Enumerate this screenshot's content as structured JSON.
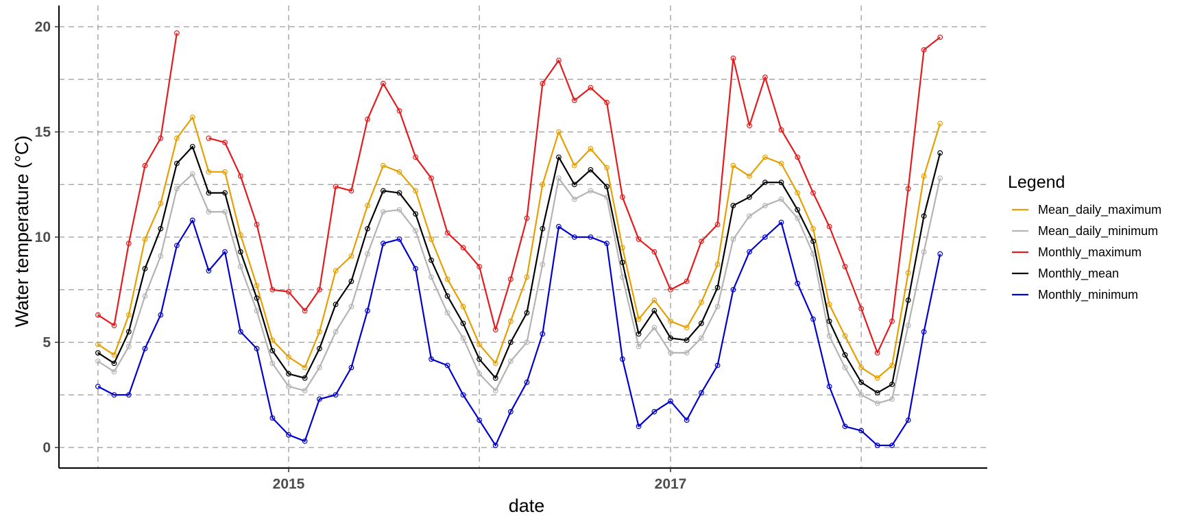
{
  "chart_data": {
    "type": "line",
    "title": "",
    "xlabel": "date",
    "ylabel": "Water temperature (°C)",
    "ylim": [
      -1,
      21
    ],
    "yticks": [
      0,
      5,
      10,
      15,
      20
    ],
    "xticks": [
      {
        "date": "2015-01-01",
        "label": "2015"
      },
      {
        "date": "2017-01-01",
        "label": "2017"
      }
    ],
    "x": [
      "2014-01",
      "2014-02",
      "2014-03",
      "2014-04",
      "2014-05",
      "2014-06",
      "2014-07",
      "2014-08",
      "2014-09",
      "2014-10",
      "2014-11",
      "2014-12",
      "2015-01",
      "2015-02",
      "2015-03",
      "2015-04",
      "2015-05",
      "2015-06",
      "2015-07",
      "2015-08",
      "2015-09",
      "2015-10",
      "2015-11",
      "2015-12",
      "2016-01",
      "2016-02",
      "2016-03",
      "2016-04",
      "2016-05",
      "2016-06",
      "2016-07",
      "2016-08",
      "2016-09",
      "2016-10",
      "2016-11",
      "2016-12",
      "2017-01",
      "2017-02",
      "2017-03",
      "2017-04",
      "2017-05",
      "2017-06",
      "2017-07",
      "2017-08",
      "2017-09",
      "2017-10",
      "2017-11",
      "2017-12",
      "2018-01",
      "2018-02",
      "2018-03",
      "2018-04",
      "2018-05",
      "2018-06"
    ],
    "grid": true,
    "legend_title": "Legend",
    "legend_position": "right",
    "series": [
      {
        "name": "Mean_daily_maximum",
        "color": "#E69F00",
        "values": [
          4.9,
          4.4,
          6.3,
          9.9,
          11.6,
          14.7,
          15.7,
          13.1,
          13.1,
          10.1,
          7.7,
          5.1,
          4.3,
          3.8,
          5.5,
          8.4,
          9.1,
          11.5,
          13.4,
          13.1,
          12.2,
          9.9,
          8.0,
          6.7,
          4.9,
          4.0,
          6.0,
          8.1,
          12.5,
          15.0,
          13.4,
          14.2,
          13.3,
          9.5,
          6.1,
          7.0,
          6.0,
          5.7,
          6.9,
          8.7,
          13.4,
          12.9,
          13.8,
          13.5,
          12.1,
          10.4,
          6.8,
          5.3,
          3.8,
          3.3,
          3.9,
          8.3,
          12.9,
          15.4
        ]
      },
      {
        "name": "Mean_daily_minimum",
        "color": "#B3B3B3",
        "values": [
          4.1,
          3.6,
          4.8,
          7.2,
          9.1,
          12.3,
          13.0,
          11.2,
          11.2,
          8.6,
          6.5,
          4.0,
          2.9,
          2.7,
          3.8,
          5.5,
          6.7,
          9.2,
          11.2,
          11.3,
          10.3,
          8.1,
          6.4,
          5.2,
          3.5,
          2.7,
          4.1,
          5.0,
          8.7,
          12.8,
          11.8,
          12.2,
          11.9,
          8.1,
          4.8,
          5.7,
          4.5,
          4.5,
          5.2,
          6.7,
          9.9,
          11.0,
          11.5,
          11.8,
          10.9,
          9.2,
          5.3,
          3.8,
          2.5,
          2.1,
          2.3,
          5.8,
          9.3,
          12.8
        ]
      },
      {
        "name": "Monthly_maximum",
        "color": "#E41A1C",
        "values": [
          6.3,
          5.8,
          9.7,
          13.4,
          14.7,
          19.7,
          null,
          14.7,
          14.5,
          12.9,
          10.6,
          7.5,
          7.4,
          6.5,
          7.5,
          12.4,
          12.2,
          15.6,
          17.3,
          16.0,
          13.8,
          12.8,
          10.2,
          9.5,
          8.6,
          5.6,
          8.0,
          10.9,
          17.3,
          18.4,
          16.5,
          17.1,
          16.4,
          11.9,
          9.9,
          9.3,
          7.5,
          7.9,
          9.8,
          10.6,
          18.5,
          15.3,
          17.6,
          15.1,
          13.8,
          12.1,
          10.5,
          8.6,
          6.6,
          4.5,
          6.0,
          12.3,
          18.9,
          19.5
        ]
      },
      {
        "name": "Monthly_mean",
        "color": "#000000",
        "values": [
          4.5,
          4.0,
          5.5,
          8.5,
          10.4,
          13.5,
          14.3,
          12.1,
          12.1,
          9.3,
          7.1,
          4.6,
          3.5,
          3.3,
          4.7,
          6.8,
          7.9,
          10.4,
          12.2,
          12.1,
          11.1,
          8.9,
          7.2,
          5.9,
          4.2,
          3.3,
          5.0,
          6.4,
          10.4,
          13.8,
          12.5,
          13.2,
          12.4,
          8.8,
          5.4,
          6.5,
          5.2,
          5.1,
          5.9,
          7.6,
          11.5,
          11.9,
          12.6,
          12.6,
          11.3,
          9.8,
          6.0,
          4.4,
          3.1,
          2.6,
          3.0,
          7.0,
          11.0,
          14.0
        ]
      },
      {
        "name": "Monthly_minimum",
        "color": "#0000CD",
        "values": [
          2.9,
          2.5,
          2.5,
          4.7,
          6.3,
          9.6,
          10.8,
          8.4,
          9.3,
          5.5,
          4.7,
          1.4,
          0.6,
          0.3,
          2.3,
          2.5,
          3.8,
          6.5,
          9.7,
          9.9,
          8.5,
          4.2,
          3.9,
          2.5,
          1.3,
          0.1,
          1.7,
          3.1,
          5.4,
          10.5,
          10.0,
          10.0,
          9.7,
          4.2,
          1.0,
          1.7,
          2.2,
          1.3,
          2.6,
          3.9,
          7.5,
          9.3,
          10.0,
          10.7,
          7.8,
          6.1,
          2.9,
          1.0,
          0.8,
          0.1,
          0.1,
          1.3,
          5.5,
          9.2
        ]
      }
    ]
  }
}
